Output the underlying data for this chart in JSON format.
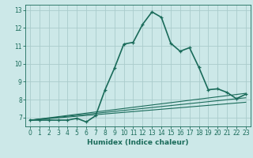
{
  "xlabel": "Humidex (Indice chaleur)",
  "ylabel": "",
  "background_color": "#cce8e8",
  "grid_color": "#aacccc",
  "line_color": "#1a6b5a",
  "xlim": [
    -0.5,
    23.5
  ],
  "ylim": [
    6.5,
    13.3
  ],
  "xticks": [
    0,
    1,
    2,
    3,
    4,
    5,
    6,
    7,
    8,
    9,
    10,
    11,
    12,
    13,
    14,
    15,
    16,
    17,
    18,
    19,
    20,
    21,
    22,
    23
  ],
  "yticks": [
    7,
    8,
    9,
    10,
    11,
    12,
    13
  ],
  "series": [
    {
      "x": [
        0,
        1,
        2,
        3,
        4,
        5,
        6,
        7,
        8,
        9,
        10,
        11,
        12,
        13,
        14,
        15,
        16,
        17,
        18,
        19,
        20,
        21,
        22,
        23
      ],
      "y": [
        6.85,
        6.85,
        6.85,
        6.85,
        6.85,
        6.95,
        6.75,
        7.1,
        8.55,
        9.75,
        11.1,
        11.2,
        12.2,
        12.9,
        12.6,
        11.15,
        10.7,
        10.9,
        9.8,
        8.55,
        8.6,
        8.4,
        8.05,
        8.3
      ],
      "marker": true,
      "linewidth": 1.2
    },
    {
      "x": [
        0,
        23
      ],
      "y": [
        6.85,
        8.35
      ],
      "marker": false,
      "linewidth": 0.8
    },
    {
      "x": [
        0,
        23
      ],
      "y": [
        6.85,
        8.1
      ],
      "marker": false,
      "linewidth": 0.8
    },
    {
      "x": [
        0,
        23
      ],
      "y": [
        6.85,
        7.85
      ],
      "marker": false,
      "linewidth": 0.8
    }
  ]
}
